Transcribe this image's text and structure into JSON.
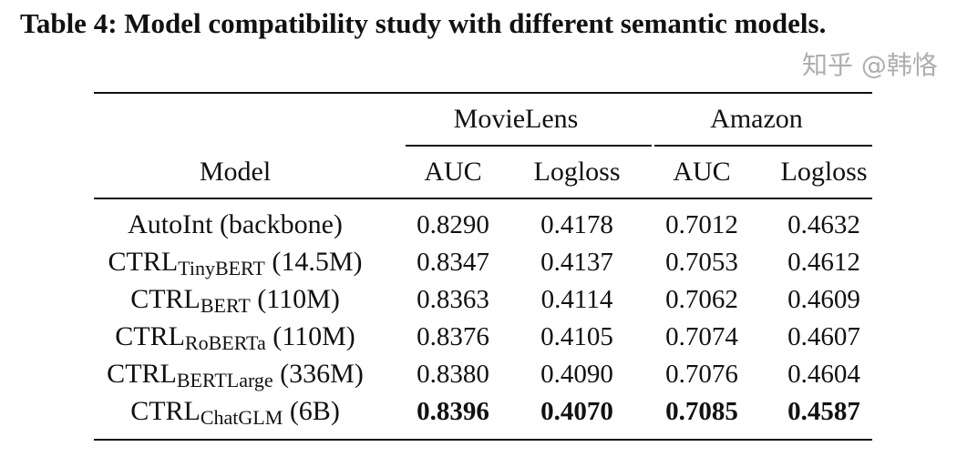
{
  "caption": "Table 4: Model compatibility study with different semantic models.",
  "header": {
    "groups": [
      "MovieLens",
      "Amazon"
    ],
    "columns": [
      "Model",
      "AUC",
      "Logloss",
      "AUC",
      "Logloss"
    ]
  },
  "rows": [
    {
      "model": "AutoInt (backbone)",
      "sub": "",
      "suffix": "",
      "values": [
        "0.8290",
        "0.4178",
        "0.7012",
        "0.4632"
      ],
      "bold": false
    },
    {
      "model": "CTRL",
      "sub": "TinyBERT",
      "suffix": " (14.5M)",
      "values": [
        "0.8347",
        "0.4137",
        "0.7053",
        "0.4612"
      ],
      "bold": false
    },
    {
      "model": "CTRL",
      "sub": "BERT",
      "suffix": " (110M)",
      "values": [
        "0.8363",
        "0.4114",
        "0.7062",
        "0.4609"
      ],
      "bold": false
    },
    {
      "model": "CTRL",
      "sub": "RoBERTa",
      "suffix": " (110M)",
      "values": [
        "0.8376",
        "0.4105",
        "0.7074",
        "0.4607"
      ],
      "bold": false
    },
    {
      "model": "CTRL",
      "sub": "BERTLarge",
      "suffix": " (336M)",
      "values": [
        "0.8380",
        "0.4090",
        "0.7076",
        "0.4604"
      ],
      "bold": false
    },
    {
      "model": "CTRL",
      "sub": "ChatGLM",
      "suffix": " (6B)",
      "values": [
        "0.8396",
        "0.4070",
        "0.7085",
        "0.4587"
      ],
      "bold": true
    }
  ],
  "watermark": "知乎 @韩恪"
}
